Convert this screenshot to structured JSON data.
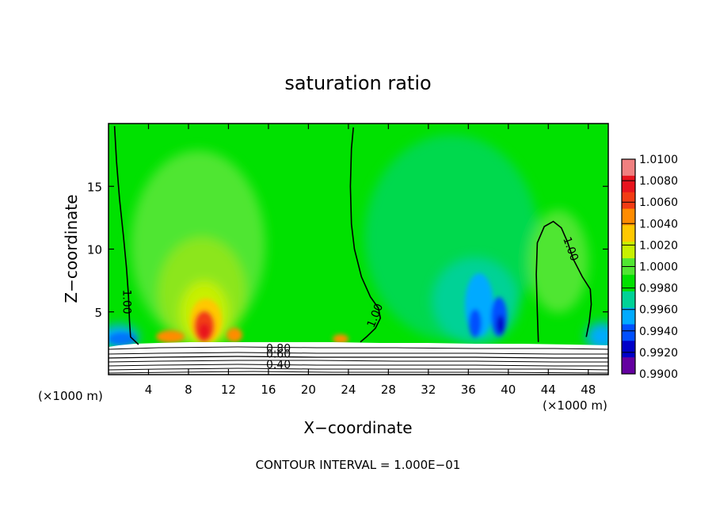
{
  "chart_data": {
    "type": "heatmap",
    "title": "saturation ratio",
    "xlabel": "X−coordinate",
    "ylabel": "Z−coordinate",
    "x_unit_label": "(×1000 m)",
    "y_unit_label": "(×1000 m)",
    "xlim": [
      0,
      50
    ],
    "ylim": [
      0,
      20
    ],
    "x_ticks": [
      4,
      8,
      12,
      16,
      20,
      24,
      28,
      32,
      36,
      40,
      44,
      48
    ],
    "y_ticks": [
      5,
      10,
      15
    ],
    "footer": "CONTOUR INTERVAL = 1.000E−01",
    "colorbar": {
      "labels": [
        "1.0100",
        "1.0080",
        "1.0060",
        "1.0040",
        "1.0020",
        "1.0000",
        "0.9980",
        "0.9960",
        "0.9940",
        "0.9920",
        "0.9900"
      ],
      "colors": [
        "#f08080",
        "#e8141e",
        "#f23c14",
        "#ff8c00",
        "#ffc800",
        "#c8f000",
        "#50e632",
        "#00e100",
        "#00d296",
        "#00aaff",
        "#0050ff",
        "#0000c8",
        "#6400a0"
      ]
    },
    "contour_labels": [
      {
        "text": "1.00",
        "x": 1.8,
        "z": 5.8,
        "angle": 90
      },
      {
        "text": "1.00",
        "x": 26.7,
        "z": 4.7,
        "angle": -68
      },
      {
        "text": "1.00",
        "x": 46.2,
        "z": 10.0,
        "angle": 70
      },
      {
        "text": "0.80",
        "x": 17.0,
        "z": 2.05,
        "angle": 0
      },
      {
        "text": "0.60",
        "x": 17.0,
        "z": 1.6,
        "angle": 0
      },
      {
        "text": "0.40",
        "x": 17.0,
        "z": 0.75,
        "angle": 0
      }
    ],
    "contour_1_00": [
      {
        "name": "left",
        "points": [
          [
            0.6,
            19.8
          ],
          [
            0.8,
            17
          ],
          [
            1.1,
            14
          ],
          [
            1.5,
            11
          ],
          [
            1.8,
            8.5
          ],
          [
            2.0,
            6.3
          ],
          [
            2.1,
            4.3
          ],
          [
            2.2,
            3.0
          ],
          [
            3.0,
            2.4
          ]
        ]
      },
      {
        "name": "middle",
        "points": [
          [
            24.5,
            19.7
          ],
          [
            24.3,
            18
          ],
          [
            24.2,
            15
          ],
          [
            24.3,
            12
          ],
          [
            24.6,
            10
          ],
          [
            25.3,
            7.8
          ],
          [
            26.2,
            6.2
          ],
          [
            27.0,
            5.3
          ],
          [
            27.2,
            4.5
          ],
          [
            26.7,
            3.7
          ],
          [
            25.8,
            3.0
          ],
          [
            25.2,
            2.6
          ]
        ]
      },
      {
        "name": "right",
        "points": [
          [
            43.0,
            2.6
          ],
          [
            42.9,
            5
          ],
          [
            42.8,
            8
          ],
          [
            42.9,
            10.5
          ],
          [
            43.6,
            11.8
          ],
          [
            44.5,
            12.2
          ],
          [
            45.3,
            11.7
          ],
          [
            45.9,
            10.6
          ],
          [
            46.5,
            9.2
          ],
          [
            47.4,
            7.8
          ],
          [
            48.2,
            6.8
          ],
          [
            48.3,
            5.6
          ],
          [
            48.1,
            4.2
          ],
          [
            47.8,
            3.0
          ]
        ]
      }
    ]
  }
}
